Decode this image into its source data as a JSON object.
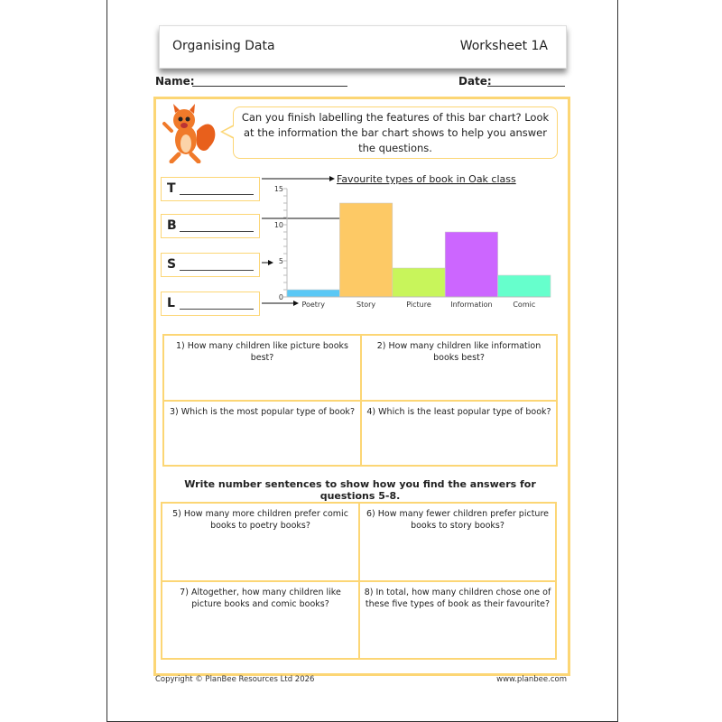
{
  "header": {
    "title": "Organising Data",
    "worksheet": "Worksheet 1A"
  },
  "fields": {
    "name_label": "Name:",
    "date_label": "Date:"
  },
  "intro": {
    "text": "Can you finish labelling the features of this bar chart? Look at the information the bar chart shows to help you answer the questions."
  },
  "label_boxes": [
    {
      "letter": "T"
    },
    {
      "letter": "B"
    },
    {
      "letter": "S"
    },
    {
      "letter": "L"
    }
  ],
  "chart_data": {
    "type": "bar",
    "title": "Favourite types of book in Oak class",
    "categories": [
      "Poetry",
      "Story",
      "Picture",
      "Information",
      "Comic"
    ],
    "values": [
      1,
      13,
      4,
      9,
      3
    ],
    "colors": [
      "#5bc8f5",
      "#fdc965",
      "#c8f55b",
      "#cc66ff",
      "#66ffcc"
    ],
    "ylim": [
      0,
      15
    ],
    "yticks": [
      "0",
      "5",
      "10",
      "15"
    ],
    "xlabel": "",
    "ylabel": "",
    "grid": false
  },
  "questions_a": [
    "1) How many children like picture books best?",
    "2) How many children like information books best?",
    "3) Which is the most popular type of book?",
    "4) Which is the least popular type of book?"
  ],
  "section_b_heading": "Write number sentences to show how you find the answers for questions 5-8.",
  "questions_b": [
    "5) How many more children prefer comic books to poetry books?",
    "6) How many fewer children prefer picture books to story books?",
    "7) Altogether, how many children like picture books and comic books?",
    "8) In total, how many children chose one of these five types of book as their favourite?"
  ],
  "footer": {
    "copyright": "Copyright © PlanBee Resources Ltd 2026",
    "website": "www.planbee.com"
  },
  "colors": {
    "accent": "#fcd675"
  }
}
